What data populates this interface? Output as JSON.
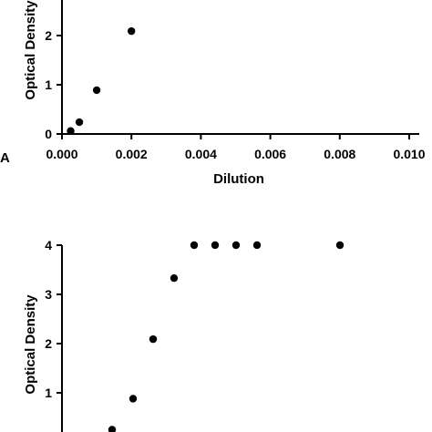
{
  "chart_data": [
    {
      "type": "scatter",
      "panel_label": "A",
      "xlabel": "Dilution",
      "ylabel": "Optical Density",
      "xlim": [
        0,
        0.01
      ],
      "ylim": [
        0,
        2.75
      ],
      "x_ticks": [
        "0.000",
        "0.002",
        "0.004",
        "0.006",
        "0.008",
        "0.010"
      ],
      "y_ticks": [
        "0",
        "1",
        "2"
      ],
      "series": [
        {
          "x": [
            0.00025,
            0.0005,
            0.001,
            0.002
          ],
          "y": [
            0.06,
            0.24,
            0.89,
            2.09
          ]
        }
      ]
    },
    {
      "type": "scatter",
      "ylabel": "Optical Density",
      "ylim": [
        0,
        4
      ],
      "y_ticks": [
        "1",
        "2",
        "3",
        "4"
      ],
      "series": [
        {
          "x": [
            1,
            2,
            3,
            4,
            5,
            6,
            7,
            8,
            9
          ],
          "y": [
            0.25,
            0.88,
            2.09,
            3.33,
            4.0,
            4.0,
            4.0,
            4.0,
            4.0
          ]
        }
      ]
    }
  ]
}
